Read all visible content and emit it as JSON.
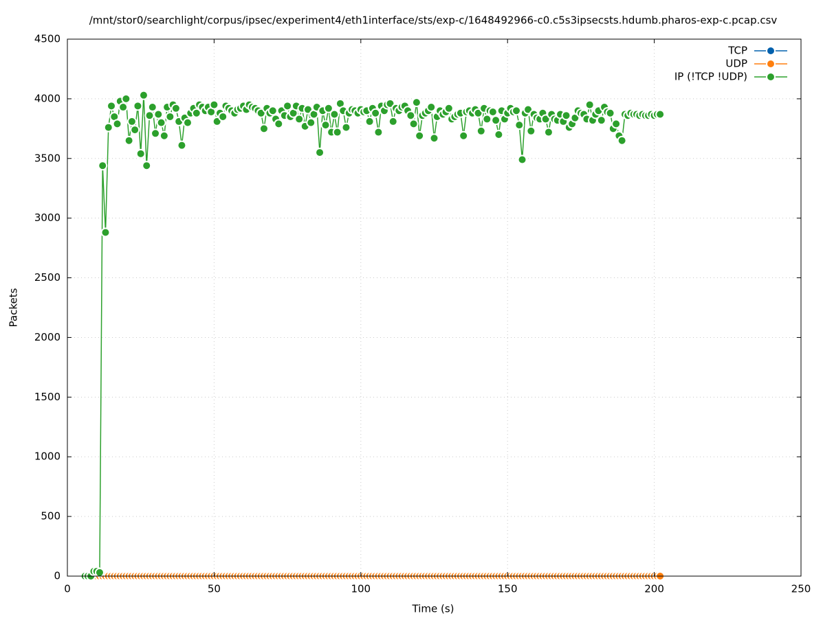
{
  "chart_data": {
    "type": "line",
    "title": "/mnt/stor0/searchlight/corpus/ipsec/experiment4/eth1interface/sts/exp-c/1648492966-c0.c5s3ipsecsts.hdumb.pharos-exp-c.pcap.csv",
    "x_label": "Time (s)",
    "y_label": "Packets",
    "xlim": [
      0,
      250
    ],
    "xticks": [
      0,
      50,
      100,
      150,
      200,
      250
    ],
    "ylim": [
      0,
      4500
    ],
    "yticks": [
      0,
      500,
      1000,
      1500,
      2000,
      2500,
      3000,
      3500,
      4000,
      4500
    ],
    "grid": true,
    "legend": "top-right",
    "x": [
      6,
      7,
      8,
      9,
      10,
      11,
      12,
      13,
      14,
      15,
      16,
      17,
      18,
      19,
      20,
      21,
      22,
      23,
      24,
      25,
      26,
      27,
      28,
      29,
      30,
      31,
      32,
      33,
      34,
      35,
      36,
      37,
      38,
      39,
      40,
      41,
      42,
      43,
      44,
      45,
      46,
      47,
      48,
      49,
      50,
      51,
      52,
      53,
      54,
      55,
      56,
      57,
      58,
      59,
      60,
      61,
      62,
      63,
      64,
      65,
      66,
      67,
      68,
      69,
      70,
      71,
      72,
      73,
      74,
      75,
      76,
      77,
      78,
      79,
      80,
      81,
      82,
      83,
      84,
      85,
      86,
      87,
      88,
      89,
      90,
      91,
      92,
      93,
      94,
      95,
      96,
      97,
      98,
      99,
      100,
      101,
      102,
      103,
      104,
      105,
      106,
      107,
      108,
      109,
      110,
      111,
      112,
      113,
      114,
      115,
      116,
      117,
      118,
      119,
      120,
      121,
      122,
      123,
      124,
      125,
      126,
      127,
      128,
      129,
      130,
      131,
      132,
      133,
      134,
      135,
      136,
      137,
      138,
      139,
      140,
      141,
      142,
      143,
      144,
      145,
      146,
      147,
      148,
      149,
      150,
      151,
      152,
      153,
      154,
      155,
      156,
      157,
      158,
      159,
      160,
      161,
      162,
      163,
      164,
      165,
      166,
      167,
      168,
      169,
      170,
      171,
      172,
      173,
      174,
      175,
      176,
      177,
      178,
      179,
      180,
      181,
      182,
      183,
      184,
      185,
      186,
      187,
      188,
      189,
      190,
      191,
      192,
      193,
      194,
      195,
      196,
      197,
      198,
      199,
      200,
      201,
      202
    ],
    "series": [
      {
        "name": "TCP",
        "color": "#0060ad",
        "values": [
          0,
          0,
          0,
          0,
          0,
          0,
          0,
          0,
          0,
          0,
          0,
          0,
          0,
          0,
          0,
          0,
          0,
          0,
          0,
          0,
          0,
          0,
          0,
          0,
          0,
          0,
          0,
          0,
          0,
          0,
          0,
          0,
          0,
          0,
          0,
          0,
          0,
          0,
          0,
          0,
          0,
          0,
          0,
          0,
          0,
          0,
          0,
          0,
          0,
          0,
          0,
          0,
          0,
          0,
          0,
          0,
          0,
          0,
          0,
          0,
          0,
          0,
          0,
          0,
          0,
          0,
          0,
          0,
          0,
          0,
          0,
          0,
          0,
          0,
          0,
          0,
          0,
          0,
          0,
          0,
          0,
          0,
          0,
          0,
          0,
          0,
          0,
          0,
          0,
          0,
          0,
          0,
          0,
          0,
          0,
          0,
          0,
          0,
          0,
          0,
          0,
          0,
          0,
          0,
          0,
          0,
          0,
          0,
          0,
          0,
          0,
          0,
          0,
          0,
          0,
          0,
          0,
          0,
          0,
          0,
          0,
          0,
          0,
          0,
          0,
          0,
          0,
          0,
          0,
          0,
          0,
          0,
          0,
          0,
          0,
          0,
          0,
          0,
          0,
          0,
          0,
          0,
          0,
          0,
          0,
          0,
          0,
          0,
          0,
          0,
          0,
          0,
          0,
          0,
          0,
          0,
          0,
          0,
          0,
          0,
          0,
          0,
          0,
          0,
          0,
          0,
          0,
          0,
          0,
          0,
          0,
          0,
          0,
          0,
          0,
          0,
          0,
          0,
          0,
          0,
          0,
          0,
          0,
          0,
          0,
          0,
          0,
          0,
          0,
          0,
          0,
          0,
          0,
          0,
          0,
          0,
          0
        ]
      },
      {
        "name": "UDP",
        "color": "#ff7f0e",
        "values": [
          0,
          0,
          0,
          0,
          0,
          0,
          0,
          0,
          0,
          0,
          0,
          0,
          0,
          0,
          0,
          0,
          0,
          0,
          0,
          0,
          0,
          0,
          0,
          0,
          0,
          0,
          0,
          0,
          0,
          0,
          0,
          0,
          0,
          0,
          0,
          0,
          0,
          0,
          0,
          0,
          0,
          0,
          0,
          0,
          0,
          0,
          0,
          0,
          0,
          0,
          0,
          0,
          0,
          0,
          0,
          0,
          0,
          0,
          0,
          0,
          0,
          0,
          0,
          0,
          0,
          0,
          0,
          0,
          0,
          0,
          0,
          0,
          0,
          0,
          0,
          0,
          0,
          0,
          0,
          0,
          0,
          0,
          0,
          0,
          0,
          0,
          0,
          0,
          0,
          0,
          0,
          0,
          0,
          0,
          0,
          0,
          0,
          0,
          0,
          0,
          0,
          0,
          0,
          0,
          0,
          0,
          0,
          0,
          0,
          0,
          0,
          0,
          0,
          0,
          0,
          0,
          0,
          0,
          0,
          0,
          0,
          0,
          0,
          0,
          0,
          0,
          0,
          0,
          0,
          0,
          0,
          0,
          0,
          0,
          0,
          0,
          0,
          0,
          0,
          0,
          0,
          0,
          0,
          0,
          0,
          0,
          0,
          0,
          0,
          0,
          0,
          0,
          0,
          0,
          0,
          0,
          0,
          0,
          0,
          0,
          0,
          0,
          0,
          0,
          0,
          0,
          0,
          0,
          0,
          0,
          0,
          0,
          0,
          0,
          0,
          0,
          0,
          0,
          0,
          0,
          0,
          0,
          0,
          0,
          0,
          0,
          0,
          0,
          0,
          0,
          0,
          0,
          0,
          0,
          0,
          0,
          0
        ]
      },
      {
        "name": "IP (!TCP  !UDP)",
        "color": "#2ca02c",
        "values": [
          0,
          0,
          0,
          40,
          40,
          30,
          3440,
          2880,
          3760,
          3940,
          3850,
          3790,
          3980,
          3930,
          4000,
          3650,
          3810,
          3740,
          3940,
          3540,
          4030,
          3440,
          3860,
          3930,
          3710,
          3870,
          3800,
          3690,
          3930,
          3850,
          3950,
          3920,
          3810,
          3610,
          3840,
          3800,
          3880,
          3920,
          3880,
          3950,
          3930,
          3900,
          3930,
          3890,
          3950,
          3810,
          3880,
          3850,
          3940,
          3920,
          3900,
          3880,
          3910,
          3920,
          3940,
          3910,
          3950,
          3930,
          3920,
          3900,
          3880,
          3750,
          3920,
          3880,
          3900,
          3830,
          3790,
          3900,
          3860,
          3940,
          3850,
          3880,
          3940,
          3830,
          3920,
          3770,
          3910,
          3800,
          3870,
          3930,
          3550,
          3900,
          3780,
          3920,
          3720,
          3870,
          3720,
          3960,
          3900,
          3760,
          3880,
          3910,
          3900,
          3880,
          3910,
          3890,
          3900,
          3810,
          3920,
          3880,
          3720,
          3940,
          3900,
          3950,
          3960,
          3810,
          3920,
          3900,
          3930,
          3940,
          3900,
          3860,
          3790,
          3970,
          3690,
          3860,
          3880,
          3900,
          3930,
          3670,
          3850,
          3900,
          3870,
          3890,
          3920,
          3830,
          3850,
          3870,
          3880,
          3690,
          3890,
          3900,
          3880,
          3910,
          3880,
          3730,
          3920,
          3830,
          3900,
          3890,
          3820,
          3700,
          3900,
          3830,
          3880,
          3920,
          3890,
          3900,
          3780,
          3490,
          3880,
          3910,
          3730,
          3870,
          3840,
          3830,
          3880,
          3830,
          3720,
          3870,
          3830,
          3820,
          3870,
          3810,
          3860,
          3760,
          3790,
          3840,
          3900,
          3880,
          3870,
          3830,
          3950,
          3820,
          3870,
          3900,
          3820,
          3930,
          3890,
          3880,
          3750,
          3790,
          3690,
          3650,
          3870,
          3860,
          3880,
          3870,
          3870,
          3860,
          3870,
          3860,
          3860,
          3870,
          3860,
          3870,
          3870
        ]
      }
    ]
  }
}
